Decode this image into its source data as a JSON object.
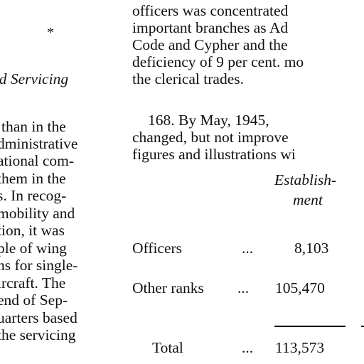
{
  "left_column": {
    "star": "*",
    "heading": "nd  Servicing",
    "lines": [
      "than  in  the",
      "dministrative",
      "ational  com-",
      " them  in  the",
      "s.  In  recog-",
      "mobility  and",
      "tion,  it  was",
      "ple  of  wing",
      "ns  for  single-",
      "ircraft.   The",
      "end  of  Sep-",
      "uarters  based",
      "the  servicing"
    ]
  },
  "right_column": {
    "lines": [
      "officers  was  concentrated",
      "important  branches  as  Ad",
      "Code  and  Cypher  and  the",
      "deficiency of 9 per cent. mo",
      "the clerical trades."
    ],
    "para168": [
      "168.  By   May,   1945,",
      "changed,  but  not  improve",
      "figures  and  illustrations  wi"
    ],
    "table": {
      "col_header_1": "Establish-",
      "col_header_2": "ment",
      "rows": [
        {
          "label": "Officers",
          "dots": "...",
          "value": "8,103"
        },
        {
          "label": "Other ranks",
          "dots": "...",
          "value": "105,470"
        }
      ],
      "total": {
        "label": "Total",
        "dots": "...",
        "value": "113,573"
      }
    }
  }
}
